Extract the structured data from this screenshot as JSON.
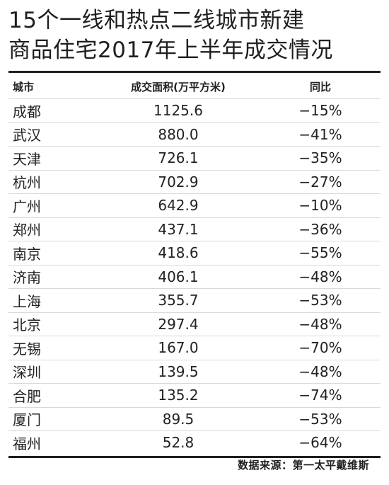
{
  "title": {
    "line1": "15个一线和热点二线城市新建",
    "line2": "商品住宅2017年上半年成交情况"
  },
  "table": {
    "headers": {
      "city": "城市",
      "area": "成交面积(万平方米)",
      "yoy": "同比"
    },
    "rows": [
      {
        "city": "成都",
        "area": "1125.6",
        "yoy": "−15%"
      },
      {
        "city": "武汉",
        "area": "880.0",
        "yoy": "−41%"
      },
      {
        "city": "天津",
        "area": "726.1",
        "yoy": "−35%"
      },
      {
        "city": "杭州",
        "area": "702.9",
        "yoy": "−27%"
      },
      {
        "city": "广州",
        "area": "642.9",
        "yoy": "−10%"
      },
      {
        "city": "郑州",
        "area": "437.1",
        "yoy": "−36%"
      },
      {
        "city": "南京",
        "area": "418.6",
        "yoy": "−55%"
      },
      {
        "city": "济南",
        "area": "406.1",
        "yoy": "−48%"
      },
      {
        "city": "上海",
        "area": "355.7",
        "yoy": "−53%"
      },
      {
        "city": "北京",
        "area": "297.4",
        "yoy": "−48%"
      },
      {
        "city": "无锡",
        "area": "167.0",
        "yoy": "−70%"
      },
      {
        "city": "深圳",
        "area": "139.5",
        "yoy": "−48%"
      },
      {
        "city": "合肥",
        "area": "135.2",
        "yoy": "−74%"
      },
      {
        "city": "厦门",
        "area": "89.5",
        "yoy": "−53%"
      },
      {
        "city": "福州",
        "area": "52.8",
        "yoy": "−64%"
      }
    ]
  },
  "source": "数据来源：第一太平戴维斯"
}
